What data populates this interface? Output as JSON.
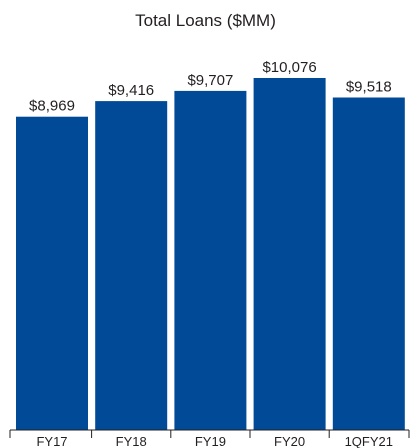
{
  "chart_data": {
    "type": "bar",
    "title": "Total Loans ($MM)",
    "categories": [
      "FY17",
      "FY18",
      "FY19",
      "FY20",
      "1QFY21"
    ],
    "values": [
      8969,
      9416,
      9707,
      10076,
      9518
    ],
    "data_labels": [
      "$8,969",
      "$9,416",
      "$9,707",
      "$10,076",
      "$9,518"
    ],
    "xlabel": "",
    "ylabel": "",
    "ylim": [
      0,
      10076
    ],
    "grid": false,
    "legend": "none",
    "colors": {
      "bar": "#004a97",
      "text": "#231f20",
      "axis": "#231f20"
    }
  }
}
